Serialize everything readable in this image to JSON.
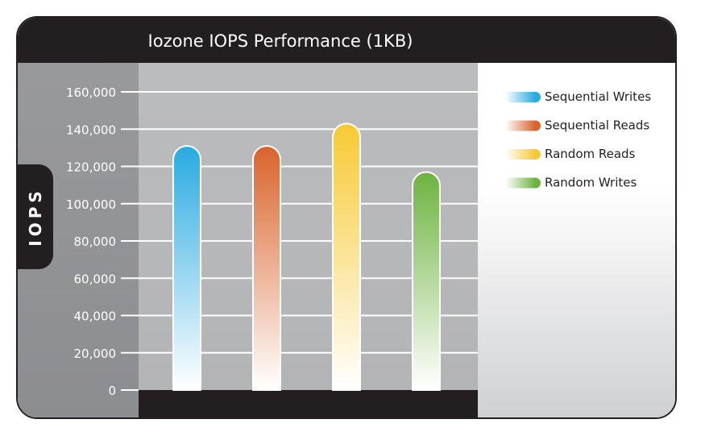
{
  "chart_data": {
    "type": "bar",
    "title": "Iozone IOPS Performance (1KB)",
    "ylabel": "IOPS",
    "xlabel": "",
    "ylim": [
      0,
      160000
    ],
    "y_ticks": [
      "0",
      "20,000",
      "40,000",
      "60,000",
      "80,000",
      "100,000",
      "120,000",
      "140,000",
      "160,000"
    ],
    "grid": true,
    "legend_position": "right",
    "series": [
      {
        "name": "Sequential Writes",
        "value": 131000,
        "color": "#29aae1"
      },
      {
        "name": "Sequential Reads",
        "value": 131000,
        "color": "#d9632b"
      },
      {
        "name": "Random Reads",
        "value": 143000,
        "color": "#f7c933"
      },
      {
        "name": "Random Writes",
        "value": 117000,
        "color": "#6db33f"
      }
    ]
  }
}
